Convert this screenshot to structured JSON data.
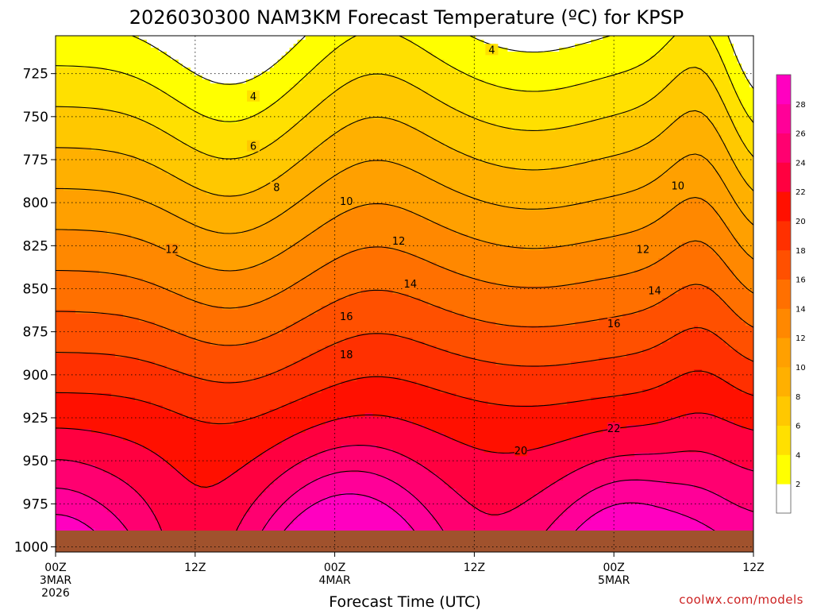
{
  "chart_data": {
    "type": "heatmap",
    "title": "2026030300 NAM3KM Forecast Temperature (ºC) for KPSP",
    "xlabel": "Forecast Time (UTC)",
    "ylabel": "",
    "x_ticks": [
      {
        "hour": 0,
        "label": "00Z",
        "sub": [
          "3MAR",
          "2026"
        ]
      },
      {
        "hour": 12,
        "label": "12Z",
        "sub": []
      },
      {
        "hour": 24,
        "label": "00Z",
        "sub": [
          "4MAR"
        ]
      },
      {
        "hour": 36,
        "label": "12Z",
        "sub": []
      },
      {
        "hour": 48,
        "label": "00Z",
        "sub": [
          "5MAR"
        ]
      },
      {
        "hour": 60,
        "label": "12Z",
        "sub": []
      }
    ],
    "x_range": [
      0,
      60
    ],
    "y_ticks": [
      725,
      750,
      775,
      800,
      825,
      850,
      875,
      900,
      925,
      950,
      975,
      1000
    ],
    "y_range": [
      703,
      1003
    ],
    "y_axis": "pressure (hPa), increasing downward",
    "grid": true,
    "contour_interval": 2,
    "contour_labels": [
      {
        "value": 4,
        "hour": 37.5,
        "p": 711
      },
      {
        "value": 4,
        "hour": 17.0,
        "p": 738
      },
      {
        "value": 6,
        "hour": 17.0,
        "p": 767
      },
      {
        "value": 8,
        "hour": 19.0,
        "p": 791
      },
      {
        "value": 10,
        "hour": 25.0,
        "p": 799
      },
      {
        "value": 10,
        "hour": 53.5,
        "p": 790
      },
      {
        "value": 12,
        "hour": 10.0,
        "p": 827
      },
      {
        "value": 12,
        "hour": 29.5,
        "p": 822
      },
      {
        "value": 12,
        "hour": 50.5,
        "p": 827
      },
      {
        "value": 14,
        "hour": 30.5,
        "p": 847
      },
      {
        "value": 14,
        "hour": 51.5,
        "p": 851
      },
      {
        "value": 16,
        "hour": 25.0,
        "p": 866
      },
      {
        "value": 16,
        "hour": 48.0,
        "p": 870
      },
      {
        "value": 18,
        "hour": 25.0,
        "p": 888
      },
      {
        "value": 20,
        "hour": 40.0,
        "p": 944
      },
      {
        "value": 22,
        "hour": 48.0,
        "p": 931
      }
    ],
    "colorbar": {
      "levels": [
        2,
        4,
        6,
        8,
        10,
        12,
        14,
        16,
        18,
        20,
        22,
        24,
        26,
        28
      ],
      "colors": [
        "#ffffff",
        "#ffff00",
        "#ffe000",
        "#ffc800",
        "#ffb000",
        "#ffa000",
        "#ff8800",
        "#ff7000",
        "#ff5000",
        "#ff3000",
        "#ff1000",
        "#ff0040",
        "#ff0070",
        "#ff0098",
        "#ff00c0"
      ]
    },
    "ground_color": "#a0522d"
  },
  "credit": "coolwx.com/models"
}
